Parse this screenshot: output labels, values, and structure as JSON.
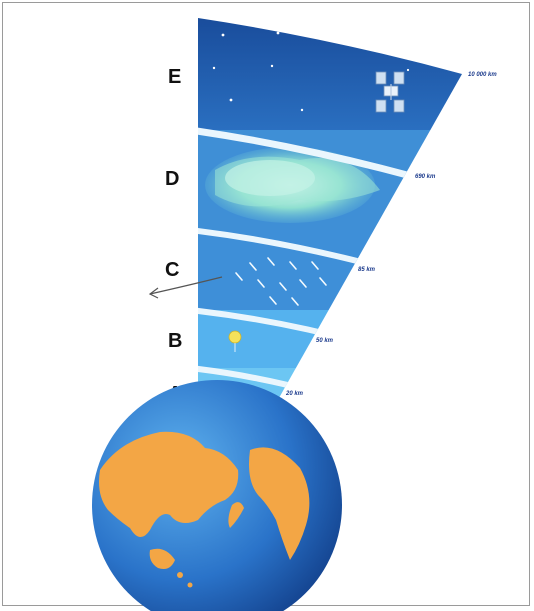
{
  "layers": [
    {
      "letter": "E",
      "altitude": "10 000 km"
    },
    {
      "letter": "D",
      "altitude": "690 km"
    },
    {
      "letter": "C",
      "altitude": "85 km"
    },
    {
      "letter": "B",
      "altitude": "50 km"
    },
    {
      "letter": "A",
      "altitude": "20 km"
    }
  ],
  "colors": {
    "space": "#1e57a8",
    "thermosphere": "#3f8fd6",
    "mesosphere": "#3e8fd8",
    "stratosphere": "#55b2ee",
    "troposphere": "#6cc6f3",
    "band": "#eaf6fd",
    "ocean": "#1f68c4",
    "land": "#f3a645"
  }
}
